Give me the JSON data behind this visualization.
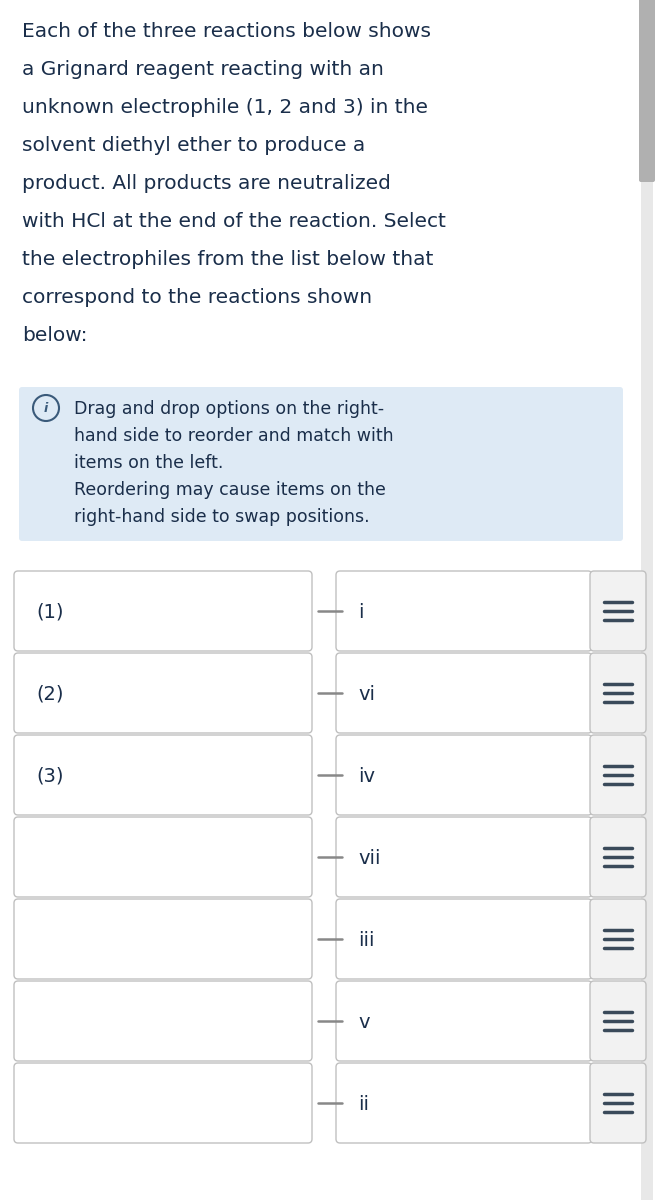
{
  "title_lines": [
    "Each of the three reactions below shows",
    "a Grignard reagent reacting with an",
    "unknown electrophile (1, 2 and 3) in the",
    "solvent diethyl ether to produce a",
    "product. All products are neutralized",
    "with HCl at the end of the reaction. Select",
    "the electrophiles from the list below that",
    "correspond to the reactions shown",
    "below:"
  ],
  "info_lines": [
    "Drag and drop options on the right-",
    "hand side to reorder and match with",
    "items on the left.",
    "Reordering may cause items on the",
    "right-hand side to swap positions."
  ],
  "left_labels": [
    "(1)",
    "(2)",
    "(3)",
    "",
    "",
    "",
    ""
  ],
  "right_labels": [
    "i",
    "vi",
    "iv",
    "vii",
    "iii",
    "v",
    "ii"
  ],
  "bg_color": "#ffffff",
  "title_color": "#1a2e4a",
  "info_bg": "#deeaf5",
  "box_border_color": "#c0c0c0",
  "box_fill_color": "#ffffff",
  "connector_color": "#888888",
  "drag_icon_color": "#3a4a5a",
  "info_icon_color": "#3a5a7a",
  "title_fontsize": 14.5,
  "info_fontsize": 12.5,
  "label_fontsize": 14.0,
  "row_label_fontsize": 14.0,
  "scroll_track_color": "#e8e8e8",
  "scroll_thumb_color": "#b0b0b0",
  "drag_box_color": "#f2f2f2"
}
